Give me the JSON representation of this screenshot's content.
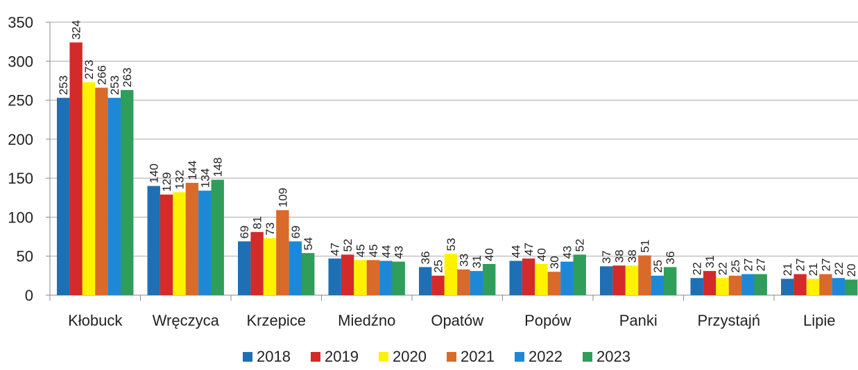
{
  "chart_data": {
    "type": "bar",
    "title": "",
    "xlabel": "",
    "ylabel": "",
    "ylim": [
      0,
      350
    ],
    "yticks": [
      0,
      50,
      100,
      150,
      200,
      250,
      300,
      350
    ],
    "grid": true,
    "legend_position": "bottom",
    "categories": [
      "Kłobuck",
      "Wręczyca",
      "Krzepice",
      "Miedźno",
      "Opatów",
      "Popów",
      "Panki",
      "Przystajń",
      "Lipie"
    ],
    "series": [
      {
        "name": "2018",
        "color": "#1f6fb4",
        "values": [
          253,
          140,
          69,
          47,
          36,
          44,
          37,
          22,
          21
        ]
      },
      {
        "name": "2019",
        "color": "#d42a2a",
        "values": [
          324,
          129,
          81,
          52,
          25,
          47,
          38,
          31,
          27
        ]
      },
      {
        "name": "2020",
        "color": "#fff200",
        "values": [
          273,
          132,
          73,
          45,
          53,
          40,
          38,
          22,
          21
        ]
      },
      {
        "name": "2021",
        "color": "#d96a2a",
        "values": [
          266,
          144,
          109,
          45,
          33,
          30,
          51,
          25,
          27
        ]
      },
      {
        "name": "2022",
        "color": "#1e88d8",
        "values": [
          253,
          134,
          69,
          44,
          31,
          43,
          25,
          27,
          22
        ]
      },
      {
        "name": "2023",
        "color": "#2e9e5a",
        "values": [
          263,
          148,
          54,
          43,
          40,
          52,
          36,
          27,
          20
        ]
      }
    ]
  }
}
